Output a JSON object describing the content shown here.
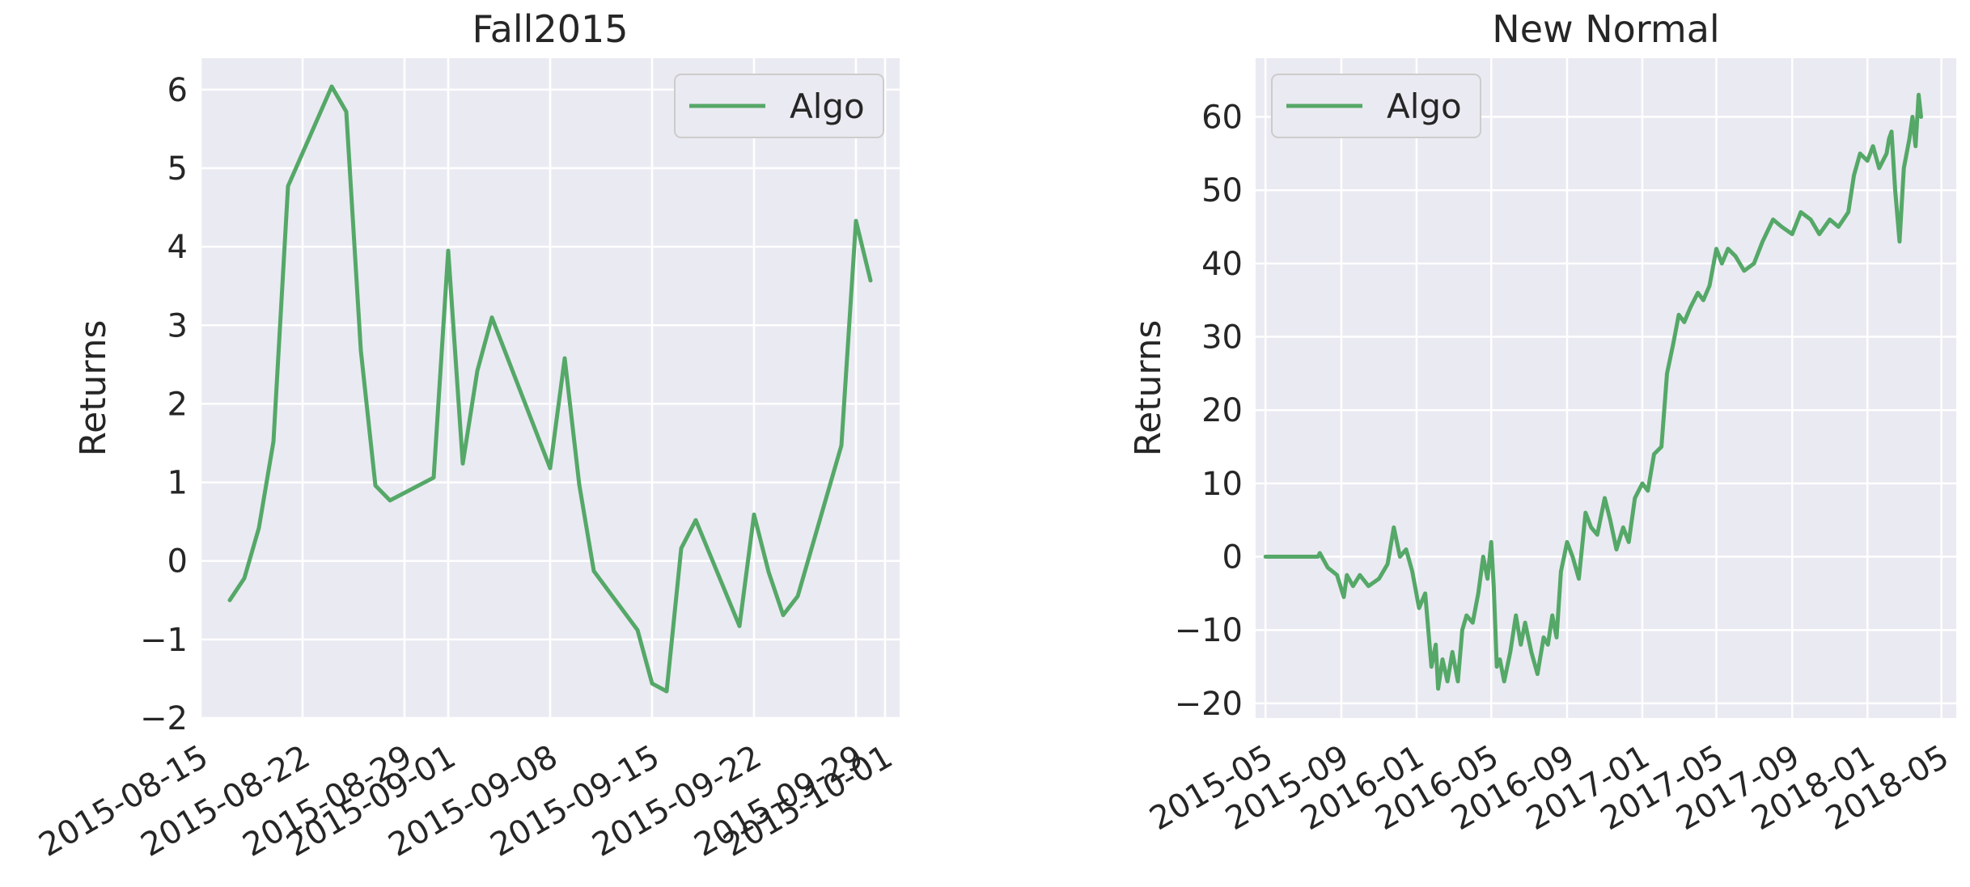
{
  "chart_data": [
    {
      "type": "line",
      "title": "Fall2015",
      "xlabel": "",
      "ylabel": "Returns",
      "x_type": "date",
      "xlim": [
        "2015-08-15",
        "2015-10-02"
      ],
      "ylim": [
        -2.0,
        6.4
      ],
      "xticks": [
        "2015-08-15",
        "2015-08-22",
        "2015-08-29",
        "2015-09-01",
        "2015-09-08",
        "2015-09-15",
        "2015-09-22",
        "2015-09-29",
        "2015-10-01"
      ],
      "yticks": [
        -2,
        -1,
        0,
        1,
        2,
        3,
        4,
        5,
        6
      ],
      "ytick_labels": [
        "−2",
        "−1",
        "0",
        "1",
        "2",
        "3",
        "4",
        "5",
        "6"
      ],
      "grid": true,
      "legend_position": "top-right",
      "series": [
        {
          "name": "Algo",
          "color": "#55a868",
          "x": [
            "2015-08-17",
            "2015-08-18",
            "2015-08-19",
            "2015-08-20",
            "2015-08-21",
            "2015-08-24",
            "2015-08-25",
            "2015-08-26",
            "2015-08-27",
            "2015-08-28",
            "2015-08-31",
            "2015-09-01",
            "2015-09-02",
            "2015-09-03",
            "2015-09-04",
            "2015-09-08",
            "2015-09-09",
            "2015-09-10",
            "2015-09-11",
            "2015-09-14",
            "2015-09-15",
            "2015-09-16",
            "2015-09-17",
            "2015-09-18",
            "2015-09-21",
            "2015-09-22",
            "2015-09-23",
            "2015-09-24",
            "2015-09-25",
            "2015-09-28",
            "2015-09-29",
            "2015-09-30"
          ],
          "y": [
            -0.5,
            -0.22,
            0.42,
            1.52,
            4.77,
            6.04,
            5.72,
            2.68,
            0.96,
            0.77,
            1.06,
            3.95,
            1.24,
            2.42,
            3.1,
            1.18,
            2.58,
            0.97,
            -0.13,
            -0.88,
            -1.56,
            -1.66,
            0.16,
            0.52,
            -0.83,
            0.59,
            -0.14,
            -0.69,
            -0.45,
            1.47,
            4.33,
            3.57
          ]
        }
      ]
    },
    {
      "type": "line",
      "title": "New Normal",
      "xlabel": "",
      "ylabel": "Returns",
      "x_type": "date",
      "xlim": [
        "2015-04-15",
        "2018-05-25"
      ],
      "ylim": [
        -22,
        68
      ],
      "xticks": [
        "2015-05-01",
        "2015-09-01",
        "2016-01-01",
        "2016-05-01",
        "2016-09-01",
        "2017-01-01",
        "2017-05-01",
        "2017-09-01",
        "2018-01-01",
        "2018-05-01"
      ],
      "xtick_labels": [
        "2015-05",
        "2015-09",
        "2016-01",
        "2016-05",
        "2016-09",
        "2017-01",
        "2017-05",
        "2017-09",
        "2018-01",
        "2018-05"
      ],
      "yticks": [
        -20,
        -10,
        0,
        10,
        20,
        30,
        40,
        50,
        60
      ],
      "ytick_labels": [
        "−20",
        "−10",
        "0",
        "10",
        "20",
        "30",
        "40",
        "50",
        "60"
      ],
      "grid": true,
      "legend_position": "top-left",
      "series": [
        {
          "name": "Algo",
          "color": "#55a868",
          "x": [
            "2015-05-01",
            "2015-06-15",
            "2015-07-25",
            "2015-07-28",
            "2015-08-10",
            "2015-08-25",
            "2015-09-05",
            "2015-09-10",
            "2015-09-20",
            "2015-10-01",
            "2015-10-15",
            "2015-11-01",
            "2015-11-15",
            "2015-11-25",
            "2015-12-05",
            "2015-12-15",
            "2015-12-25",
            "2016-01-05",
            "2016-01-15",
            "2016-01-25",
            "2016-02-01",
            "2016-02-05",
            "2016-02-12",
            "2016-02-20",
            "2016-02-28",
            "2016-03-08",
            "2016-03-15",
            "2016-03-22",
            "2016-04-01",
            "2016-04-10",
            "2016-04-18",
            "2016-04-25",
            "2016-05-01",
            "2016-05-05",
            "2016-05-10",
            "2016-05-15",
            "2016-05-22",
            "2016-06-01",
            "2016-06-10",
            "2016-06-18",
            "2016-06-25",
            "2016-07-05",
            "2016-07-15",
            "2016-07-25",
            "2016-08-01",
            "2016-08-08",
            "2016-08-15",
            "2016-08-22",
            "2016-09-01",
            "2016-09-10",
            "2016-09-20",
            "2016-10-01",
            "2016-10-10",
            "2016-10-20",
            "2016-11-01",
            "2016-11-10",
            "2016-11-20",
            "2016-12-01",
            "2016-12-10",
            "2016-12-20",
            "2017-01-01",
            "2017-01-10",
            "2017-01-20",
            "2017-02-01",
            "2017-02-10",
            "2017-02-20",
            "2017-03-01",
            "2017-03-10",
            "2017-03-20",
            "2017-04-01",
            "2017-04-10",
            "2017-04-20",
            "2017-05-01",
            "2017-05-10",
            "2017-05-20",
            "2017-06-01",
            "2017-06-15",
            "2017-07-01",
            "2017-07-15",
            "2017-08-01",
            "2017-08-15",
            "2017-09-01",
            "2017-09-15",
            "2017-10-01",
            "2017-10-15",
            "2017-11-01",
            "2017-11-15",
            "2017-12-01",
            "2017-12-10",
            "2017-12-20",
            "2018-01-01",
            "2018-01-10",
            "2018-01-20",
            "2018-02-01",
            "2018-02-05",
            "2018-02-09",
            "2018-02-15",
            "2018-02-22",
            "2018-03-01",
            "2018-03-10",
            "2018-03-15",
            "2018-03-20",
            "2018-03-25",
            "2018-03-29"
          ],
          "y": [
            0,
            0,
            0,
            0.5,
            -1.5,
            -2.5,
            -5.5,
            -2.5,
            -4,
            -2.5,
            -4,
            -3,
            -1,
            4,
            0,
            1,
            -2,
            -7,
            -5,
            -15,
            -12,
            -18,
            -14,
            -17,
            -13,
            -17,
            -10,
            -8,
            -9,
            -5,
            0,
            -3,
            2,
            -4,
            -15,
            -14,
            -17,
            -13,
            -8,
            -12,
            -9,
            -13,
            -16,
            -11,
            -12,
            -8,
            -11,
            -2,
            2,
            0,
            -3,
            6,
            4,
            3,
            8,
            5,
            1,
            4,
            2,
            8,
            10,
            9,
            14,
            15,
            25,
            29,
            33,
            32,
            34,
            36,
            35,
            37,
            42,
            40,
            42,
            41,
            39,
            40,
            43,
            46,
            45,
            44,
            47,
            46,
            44,
            46,
            45,
            47,
            52,
            55,
            54,
            56,
            53,
            55,
            57,
            58,
            50,
            43,
            53,
            57,
            60,
            56,
            63,
            60
          ]
        }
      ]
    }
  ]
}
